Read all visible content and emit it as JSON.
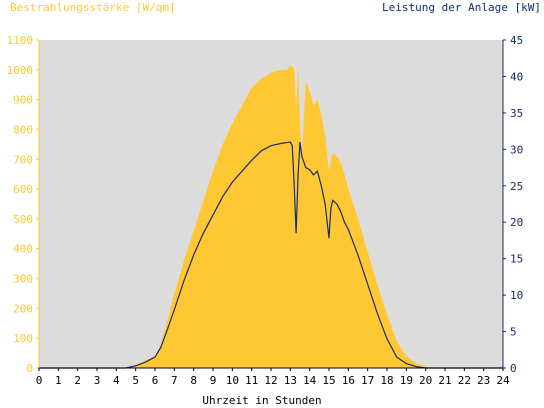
{
  "colors": {
    "irradiance": "#ffc832",
    "power": "#1a2a6c",
    "plot_bg": "#dcdcdc",
    "left_axis_text": "#ffc832",
    "right_axis_text": "#1a2a6c"
  },
  "chart_data": {
    "type": "area",
    "title_left": "Bestrahlungsstärke [W/qm]",
    "title_right": "Leistung der Anlage [kW]",
    "xlabel": "Uhrzeit in Stunden",
    "x_ticks": [
      "0",
      "1",
      "2",
      "3",
      "4",
      "5",
      "6",
      "7",
      "8",
      "9",
      "10",
      "11",
      "12",
      "13",
      "14",
      "15",
      "16",
      "17",
      "18",
      "19",
      "20",
      "21",
      "22",
      "23",
      "24"
    ],
    "xlim": [
      0,
      24
    ],
    "y_left": {
      "lim": [
        0,
        1100
      ],
      "ticks": [
        "0",
        "100",
        "200",
        "300",
        "400",
        "500",
        "600",
        "700",
        "800",
        "900",
        "1000",
        "1100"
      ]
    },
    "y_right": {
      "lim": [
        0,
        45
      ],
      "ticks": [
        "0",
        "5",
        "10",
        "15",
        "20",
        "25",
        "30",
        "35",
        "40",
        "45"
      ]
    },
    "grid": false,
    "series": [
      {
        "name": "Bestrahlungsstärke [W/qm]",
        "axis": "left",
        "type": "area",
        "x": [
          0,
          4.5,
          5.0,
          5.5,
          6.0,
          6.3,
          6.6,
          7.0,
          7.5,
          8.0,
          8.5,
          9.0,
          9.5,
          10.0,
          10.5,
          11.0,
          11.5,
          12.0,
          12.5,
          12.8,
          13.0,
          13.2,
          13.3,
          13.4,
          13.5,
          13.6,
          13.8,
          14.0,
          14.2,
          14.4,
          14.6,
          14.8,
          15.0,
          15.1,
          15.2,
          15.4,
          15.6,
          15.8,
          16.0,
          16.5,
          17.0,
          17.5,
          18.0,
          18.5,
          19.0,
          19.5,
          20.0,
          20.5,
          21.0,
          24
        ],
        "y": [
          0,
          0,
          10,
          25,
          40,
          80,
          150,
          250,
          360,
          460,
          560,
          660,
          750,
          820,
          880,
          940,
          970,
          990,
          1000,
          1000,
          1015,
          1005,
          860,
          1010,
          820,
          710,
          960,
          930,
          880,
          900,
          850,
          780,
          660,
          700,
          720,
          710,
          690,
          650,
          600,
          500,
          390,
          280,
          180,
          90,
          40,
          15,
          5,
          0,
          0,
          0
        ]
      },
      {
        "name": "Leistung der Anlage [kW]",
        "axis": "right",
        "type": "line",
        "x": [
          0,
          4.5,
          5.0,
          5.5,
          6.0,
          6.3,
          6.6,
          7.0,
          7.5,
          8.0,
          8.5,
          9.0,
          9.5,
          10.0,
          10.5,
          11.0,
          11.5,
          12.0,
          12.5,
          13.0,
          13.1,
          13.2,
          13.3,
          13.4,
          13.5,
          13.6,
          13.8,
          14.0,
          14.2,
          14.4,
          14.6,
          14.8,
          15.0,
          15.1,
          15.2,
          15.4,
          15.6,
          15.8,
          16.0,
          16.5,
          17.0,
          17.5,
          18.0,
          18.5,
          19.0,
          19.5,
          20.0,
          20.5,
          21.0,
          24
        ],
        "y": [
          0,
          0,
          0.3,
          0.8,
          1.5,
          2.8,
          5.0,
          8.0,
          12.0,
          15.5,
          18.5,
          21.0,
          23.5,
          25.5,
          27.0,
          28.5,
          29.8,
          30.5,
          30.8,
          31.0,
          30.5,
          25.0,
          18.5,
          26.5,
          31.0,
          29.0,
          27.5,
          27.2,
          26.5,
          27.0,
          25.0,
          22.5,
          17.8,
          22.0,
          23.0,
          22.5,
          21.5,
          20.0,
          19.0,
          15.5,
          11.5,
          7.5,
          4.0,
          1.5,
          0.6,
          0.2,
          0,
          0,
          0,
          0
        ]
      }
    ]
  }
}
